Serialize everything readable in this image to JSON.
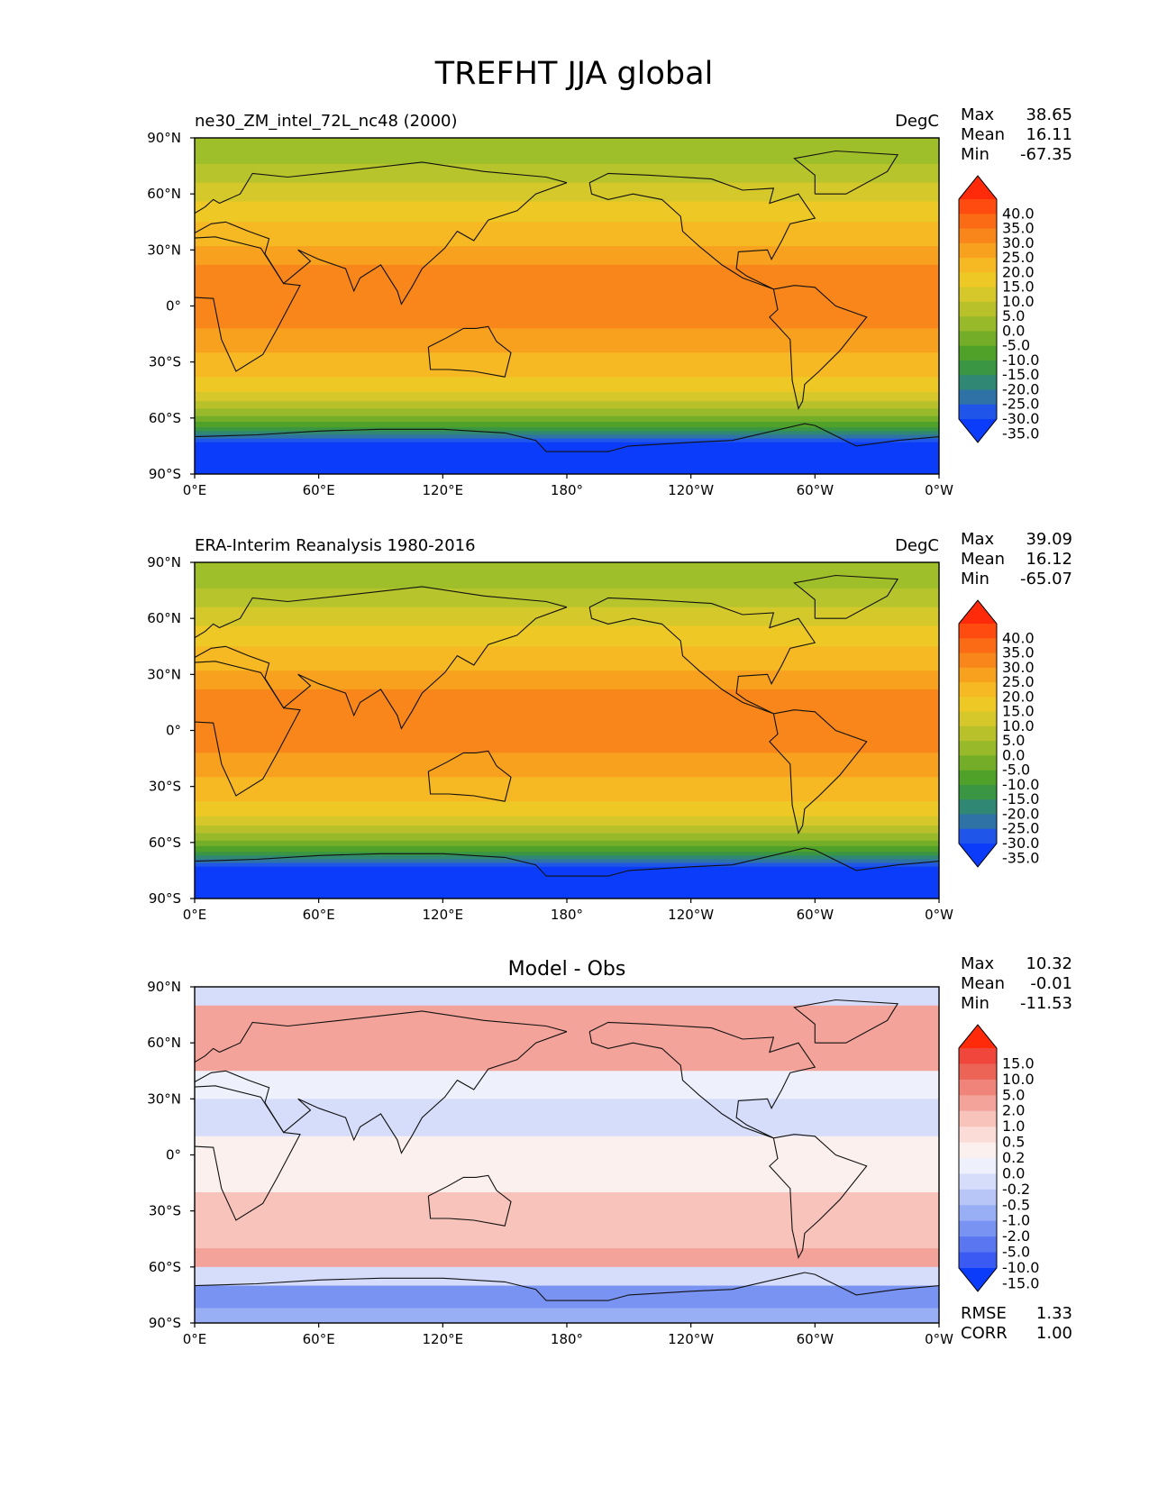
{
  "figure": {
    "title": "TREFHT JJA global"
  },
  "chart_data": [
    {
      "type": "heatmap",
      "variable": "TREFHT",
      "left_title": "ne30_ZM_intel_72L_nc48 (2000)",
      "center_title": "",
      "right_title": "DegC",
      "xtick_labels": [
        "0°E",
        "60°E",
        "120°E",
        "180°",
        "120°W",
        "60°W",
        "0°W"
      ],
      "ytick_labels": [
        "90°N",
        "60°N",
        "30°N",
        "0°",
        "30°S",
        "60°S",
        "90°S"
      ],
      "xlim": [
        0,
        360
      ],
      "ylim": [
        -90,
        90
      ],
      "stats": [
        {
          "label": "Max",
          "value": "38.65"
        },
        {
          "label": "Mean",
          "value": "16.11"
        },
        {
          "label": "Min",
          "value": "-67.35"
        }
      ],
      "extra_stats": [],
      "colorbar": {
        "levels": [
          "40.0",
          "35.0",
          "30.0",
          "25.0",
          "20.0",
          "15.0",
          "10.0",
          "5.0",
          "0.0",
          "-5.0",
          "-10.0",
          "-15.0",
          "-20.0",
          "-25.0",
          "-30.0",
          "-35.0"
        ],
        "colors": [
          "#ff2a0a",
          "#ff4a10",
          "#fb6a14",
          "#f8861a",
          "#f8a11e",
          "#f6b823",
          "#eec824",
          "#d6c82a",
          "#b9c12a",
          "#97b92a",
          "#74ae28",
          "#50a12a",
          "#3a9643",
          "#2f8774",
          "#2f72a6",
          "#1f55e8",
          "#0b3cfa"
        ],
        "extend": "both"
      },
      "zones": [
        {
          "lat": 90,
          "color": "#9fbf2a"
        },
        {
          "lat": 76,
          "color": "#b8c42c"
        },
        {
          "lat": 66,
          "color": "#d4c82b"
        },
        {
          "lat": 56,
          "color": "#eec824"
        },
        {
          "lat": 45,
          "color": "#f6b823"
        },
        {
          "lat": 32,
          "color": "#f8a11e"
        },
        {
          "lat": 22,
          "color": "#f8861a"
        },
        {
          "lat": -12,
          "color": "#f8a11e"
        },
        {
          "lat": -25,
          "color": "#f6b823"
        },
        {
          "lat": -38,
          "color": "#eec824"
        },
        {
          "lat": -46,
          "color": "#d6c82a"
        },
        {
          "lat": -51,
          "color": "#b9c12a"
        },
        {
          "lat": -55,
          "color": "#97b92a"
        },
        {
          "lat": -59,
          "color": "#74ae28"
        },
        {
          "lat": -62,
          "color": "#50a12a"
        },
        {
          "lat": -65,
          "color": "#3a9643"
        },
        {
          "lat": -67,
          "color": "#2f8774"
        },
        {
          "lat": -69,
          "color": "#2f72a6"
        },
        {
          "lat": -71,
          "color": "#1f55e8"
        },
        {
          "lat": -73,
          "color": "#0b3cfa"
        }
      ]
    },
    {
      "type": "heatmap",
      "variable": "TREFHT",
      "left_title": "ERA-Interim Reanalysis 1980-2016",
      "center_title": "",
      "right_title": "DegC",
      "xtick_labels": [
        "0°E",
        "60°E",
        "120°E",
        "180°",
        "120°W",
        "60°W",
        "0°W"
      ],
      "ytick_labels": [
        "90°N",
        "60°N",
        "30°N",
        "0°",
        "30°S",
        "60°S",
        "90°S"
      ],
      "xlim": [
        0,
        360
      ],
      "ylim": [
        -90,
        90
      ],
      "stats": [
        {
          "label": "Max",
          "value": "39.09"
        },
        {
          "label": "Mean",
          "value": "16.12"
        },
        {
          "label": "Min",
          "value": "-65.07"
        }
      ],
      "extra_stats": [],
      "colorbar": {
        "levels": [
          "40.0",
          "35.0",
          "30.0",
          "25.0",
          "20.0",
          "15.0",
          "10.0",
          "5.0",
          "0.0",
          "-5.0",
          "-10.0",
          "-15.0",
          "-20.0",
          "-25.0",
          "-30.0",
          "-35.0"
        ],
        "colors": [
          "#ff2a0a",
          "#ff4a10",
          "#fb6a14",
          "#f8861a",
          "#f8a11e",
          "#f6b823",
          "#eec824",
          "#d6c82a",
          "#b9c12a",
          "#97b92a",
          "#74ae28",
          "#50a12a",
          "#3a9643",
          "#2f8774",
          "#2f72a6",
          "#1f55e8",
          "#0b3cfa"
        ],
        "extend": "both"
      },
      "zones": [
        {
          "lat": 90,
          "color": "#9fbf2a"
        },
        {
          "lat": 76,
          "color": "#b8c42c"
        },
        {
          "lat": 66,
          "color": "#d4c82b"
        },
        {
          "lat": 56,
          "color": "#eec824"
        },
        {
          "lat": 45,
          "color": "#f6b823"
        },
        {
          "lat": 32,
          "color": "#f8a11e"
        },
        {
          "lat": 22,
          "color": "#f8861a"
        },
        {
          "lat": -12,
          "color": "#f8a11e"
        },
        {
          "lat": -25,
          "color": "#f6b823"
        },
        {
          "lat": -38,
          "color": "#eec824"
        },
        {
          "lat": -46,
          "color": "#d6c82a"
        },
        {
          "lat": -51,
          "color": "#b9c12a"
        },
        {
          "lat": -55,
          "color": "#97b92a"
        },
        {
          "lat": -59,
          "color": "#74ae28"
        },
        {
          "lat": -62,
          "color": "#50a12a"
        },
        {
          "lat": -65,
          "color": "#3a9643"
        },
        {
          "lat": -67,
          "color": "#2f8774"
        },
        {
          "lat": -69,
          "color": "#2f72a6"
        },
        {
          "lat": -71,
          "color": "#1f55e8"
        },
        {
          "lat": -73,
          "color": "#0b3cfa"
        }
      ]
    },
    {
      "type": "heatmap",
      "variable": "TREFHT difference",
      "left_title": "",
      "center_title": "Model - Obs",
      "right_title": "",
      "xtick_labels": [
        "0°E",
        "60°E",
        "120°E",
        "180°",
        "120°W",
        "60°W",
        "0°W"
      ],
      "ytick_labels": [
        "90°N",
        "60°N",
        "30°N",
        "0°",
        "30°S",
        "60°S",
        "90°S"
      ],
      "xlim": [
        0,
        360
      ],
      "ylim": [
        -90,
        90
      ],
      "stats": [
        {
          "label": "Max",
          "value": "10.32"
        },
        {
          "label": "Mean",
          "value": "-0.01"
        },
        {
          "label": "Min",
          "value": "-11.53"
        }
      ],
      "extra_stats": [
        {
          "label": "RMSE",
          "value": "1.33"
        },
        {
          "label": "CORR",
          "value": "1.00"
        }
      ],
      "colorbar": {
        "levels": [
          "15.0",
          "10.0",
          "5.0",
          "2.0",
          "1.0",
          "0.5",
          "0.2",
          "0.0",
          "-0.2",
          "-0.5",
          "-1.0",
          "-2.0",
          "-5.0",
          "-10.0",
          "-15.0"
        ],
        "colors": [
          "#ff2a0a",
          "#f0463c",
          "#ec6456",
          "#f0847a",
          "#f4a39a",
          "#f8c3bb",
          "#fbdcd6",
          "#fbf0ee",
          "#eef0fb",
          "#d6ddfa",
          "#b7c5f7",
          "#98aef5",
          "#7993f3",
          "#5a77f1",
          "#3b5af3",
          "#0b3cfa"
        ],
        "extend": "both"
      },
      "zones": [
        {
          "lat": 90,
          "color": "#d6ddfa"
        },
        {
          "lat": 80,
          "color": "#f4a39a"
        },
        {
          "lat": 45,
          "color": "#eef0fb"
        },
        {
          "lat": 30,
          "color": "#d6ddfa"
        },
        {
          "lat": 10,
          "color": "#fbf0ee"
        },
        {
          "lat": -20,
          "color": "#f8c3bb"
        },
        {
          "lat": -50,
          "color": "#f4a39a"
        },
        {
          "lat": -60,
          "color": "#d6ddfa"
        },
        {
          "lat": -70,
          "color": "#7993f3"
        },
        {
          "lat": -82,
          "color": "#98aef5"
        }
      ]
    }
  ]
}
